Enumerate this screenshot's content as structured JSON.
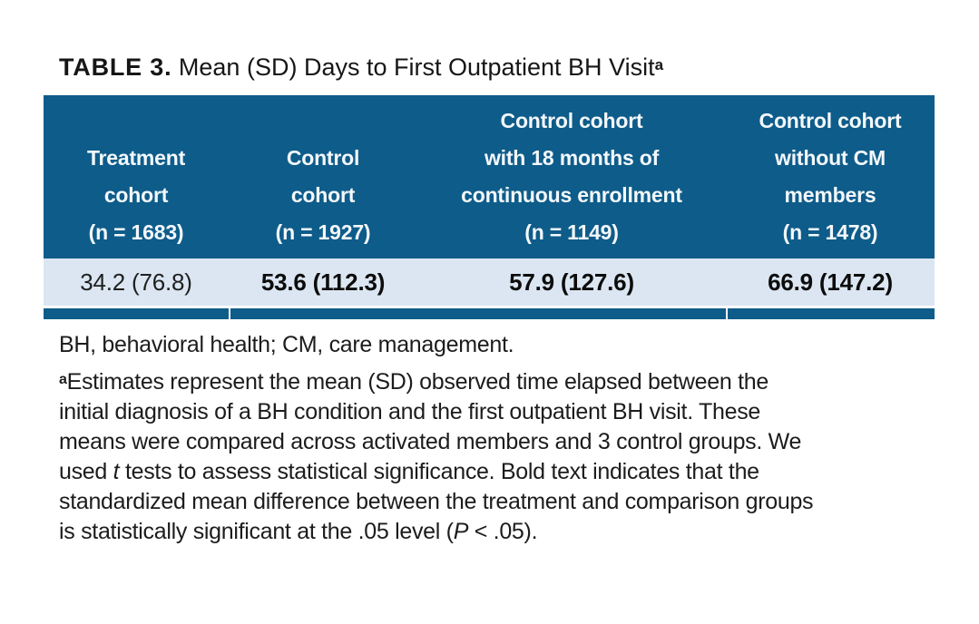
{
  "colors": {
    "accent": "#0E5C8A",
    "row-bg": "#DBE6F2"
  },
  "title": {
    "label": "TABLE 3.",
    "text": " Mean (SD) Days to First Outpatient BH Visit",
    "superscript": "a"
  },
  "table": {
    "header": [
      {
        "lines": [
          "Treatment",
          "cohort",
          "(n = 1683)"
        ]
      },
      {
        "lines": [
          "Control",
          "cohort",
          "(n = 1927)"
        ]
      },
      {
        "lines": [
          "Control cohort",
          "with 18 months of",
          "continuous enrollment",
          "(n = 1149)"
        ]
      },
      {
        "lines": [
          "Control cohort",
          "without CM",
          "members",
          "(n = 1478)"
        ]
      }
    ],
    "row": [
      {
        "value": "34.2 (76.8)",
        "bold": false
      },
      {
        "value": "53.6 (112.3)",
        "bold": true
      },
      {
        "value": "57.9 (127.6)",
        "bold": true
      },
      {
        "value": "66.9 (147.2)",
        "bold": true
      }
    ]
  },
  "footnotes": {
    "abbrev": "BH, behavioral health; CM, care management.",
    "marker": "a",
    "line1": "Estimates represent the mean (SD) observed time elapsed between the",
    "line2": "initial diagnosis of a BH condition and the first outpatient BH visit. These",
    "line3": "means were compared across activated members and 3 control groups. We",
    "line4_pre": "used ",
    "line4_italic": "t",
    "line4_post": " tests to assess statistical significance. Bold text indicates that the",
    "line5": "standardized mean difference between the treatment and comparison groups",
    "line6_pre": "is statistically significant at the .05 level (",
    "line6_italic": "P",
    "line6_post": " < .05)."
  }
}
